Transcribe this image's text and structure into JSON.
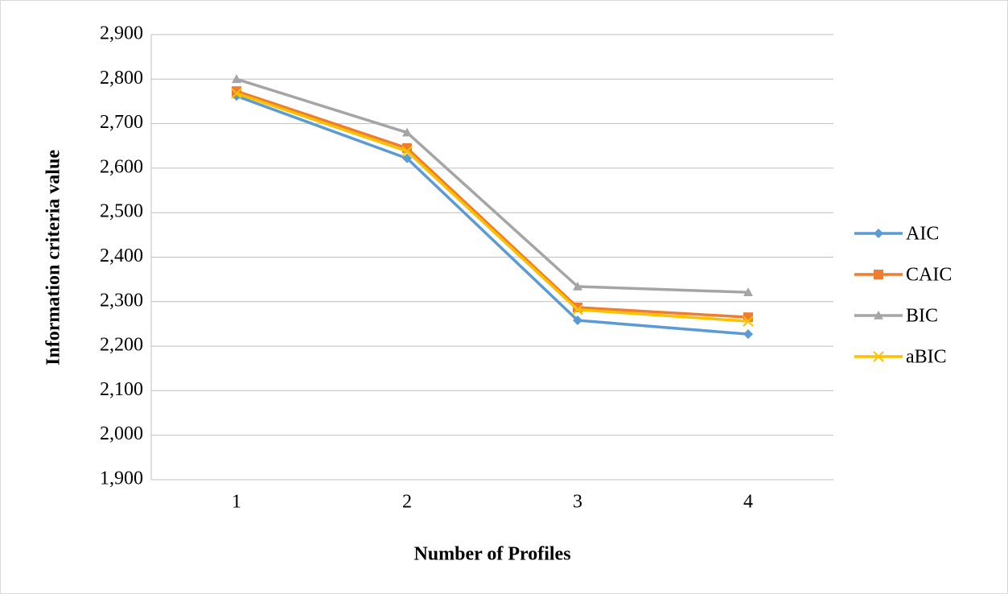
{
  "chart_data": {
    "type": "line",
    "x_label": "Number of Profiles",
    "y_label": "Information criteria value",
    "categories": [
      "1",
      "2",
      "3",
      "4"
    ],
    "series": [
      {
        "name": "AIC",
        "color": "#5b9bd5",
        "marker": "diamond",
        "values": [
          2762,
          2622,
          2258,
          2227
        ]
      },
      {
        "name": "CAIC",
        "color": "#ed7d31",
        "marker": "square",
        "values": [
          2773,
          2645,
          2287,
          2265
        ]
      },
      {
        "name": "BIC",
        "color": "#a5a5a5",
        "marker": "triangle",
        "values": [
          2800,
          2680,
          2334,
          2321
        ]
      },
      {
        "name": "aBIC",
        "color": "#ffc000",
        "marker": "x",
        "values": [
          2768,
          2638,
          2282,
          2256
        ]
      }
    ],
    "ylim": [
      1900,
      2900
    ],
    "yticks": [
      {
        "value": 1900,
        "label": "1,900"
      },
      {
        "value": 2000,
        "label": "2,000"
      },
      {
        "value": 2100,
        "label": "2,100"
      },
      {
        "value": 2200,
        "label": "2,200"
      },
      {
        "value": 2300,
        "label": "2,300"
      },
      {
        "value": 2400,
        "label": "2,400"
      },
      {
        "value": 2500,
        "label": "2,500"
      },
      {
        "value": 2600,
        "label": "2,600"
      },
      {
        "value": 2700,
        "label": "2,700"
      },
      {
        "value": 2800,
        "label": "2,800"
      },
      {
        "value": 2900,
        "label": "2,900"
      }
    ],
    "grid": true,
    "legend": "right"
  }
}
